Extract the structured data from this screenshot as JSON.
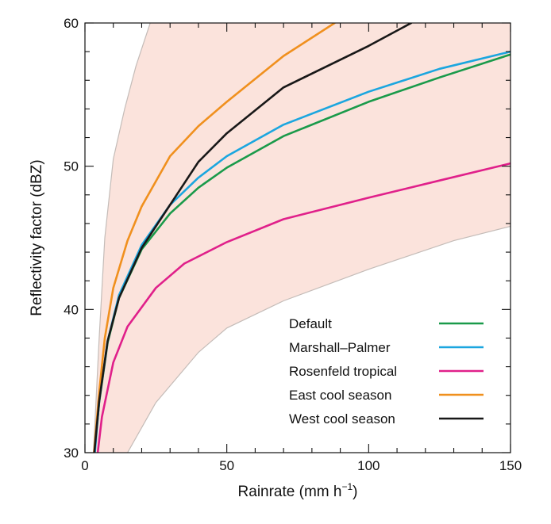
{
  "chart_data": {
    "type": "line",
    "xlabel": "Rainrate (mm h",
    "xlabel_sup": "−1",
    "xlabel_close": ")",
    "ylabel": "Reflectivity factor (dBZ)",
    "xlim": [
      0,
      150
    ],
    "ylim": [
      30,
      60
    ],
    "xticks": [
      0,
      50,
      100,
      150
    ],
    "yticks": [
      30,
      40,
      50,
      60
    ],
    "legend_position": "bottom-right",
    "band": {
      "fill": "#fbe3dc",
      "edge": "#c4bcb8",
      "upper": [
        [
          3,
          30
        ],
        [
          5,
          38
        ],
        [
          7,
          45
        ],
        [
          10,
          50.5
        ],
        [
          14,
          54
        ],
        [
          18,
          57
        ],
        [
          23,
          60
        ]
      ],
      "lower": [
        [
          15,
          30
        ],
        [
          25,
          33.5
        ],
        [
          40,
          37
        ],
        [
          50,
          38.7
        ],
        [
          70,
          40.6
        ],
        [
          100,
          42.8
        ],
        [
          130,
          44.8
        ],
        [
          150,
          45.8
        ]
      ]
    },
    "series": [
      {
        "name": "Default",
        "color": "#1a9a4a",
        "points": [
          [
            3.3,
            30
          ],
          [
            5,
            33.5
          ],
          [
            8,
            37.7
          ],
          [
            12,
            40.8
          ],
          [
            20,
            44.2
          ],
          [
            30,
            46.7
          ],
          [
            40,
            48.5
          ],
          [
            50,
            49.9
          ],
          [
            70,
            52.1
          ],
          [
            100,
            54.5
          ],
          [
            125,
            56.2
          ],
          [
            150,
            57.8
          ]
        ]
      },
      {
        "name": "Marshall–Palmer",
        "color": "#1ba6df",
        "points": [
          [
            3.5,
            30
          ],
          [
            5,
            33.6
          ],
          [
            8,
            37.8
          ],
          [
            12,
            41
          ],
          [
            20,
            44.5
          ],
          [
            30,
            47.3
          ],
          [
            40,
            49.2
          ],
          [
            50,
            50.7
          ],
          [
            70,
            52.9
          ],
          [
            100,
            55.2
          ],
          [
            125,
            56.8
          ],
          [
            150,
            58
          ]
        ]
      },
      {
        "name": "Rosenfeld tropical",
        "color": "#e0208a",
        "points": [
          [
            4.5,
            30
          ],
          [
            6,
            32.5
          ],
          [
            10,
            36.3
          ],
          [
            15,
            38.8
          ],
          [
            25,
            41.5
          ],
          [
            35,
            43.2
          ],
          [
            50,
            44.7
          ],
          [
            70,
            46.3
          ],
          [
            100,
            47.8
          ],
          [
            125,
            49
          ],
          [
            150,
            50.2
          ]
        ]
      },
      {
        "name": "East cool season",
        "color": "#f0901e",
        "points": [
          [
            3.2,
            30
          ],
          [
            5,
            34.2
          ],
          [
            7,
            38
          ],
          [
            10,
            41.5
          ],
          [
            15,
            44.8
          ],
          [
            20,
            47.2
          ],
          [
            30,
            50.7
          ],
          [
            40,
            52.8
          ],
          [
            50,
            54.5
          ],
          [
            70,
            57.7
          ],
          [
            88,
            60
          ]
        ]
      },
      {
        "name": "West cool season",
        "color": "#181818",
        "points": [
          [
            3.3,
            30
          ],
          [
            5,
            33.6
          ],
          [
            8,
            37.8
          ],
          [
            12,
            40.8
          ],
          [
            20,
            44.3
          ],
          [
            30,
            47.3
          ],
          [
            40,
            50.3
          ],
          [
            50,
            52.3
          ],
          [
            70,
            55.5
          ],
          [
            100,
            58.4
          ],
          [
            115,
            60
          ]
        ]
      }
    ]
  }
}
